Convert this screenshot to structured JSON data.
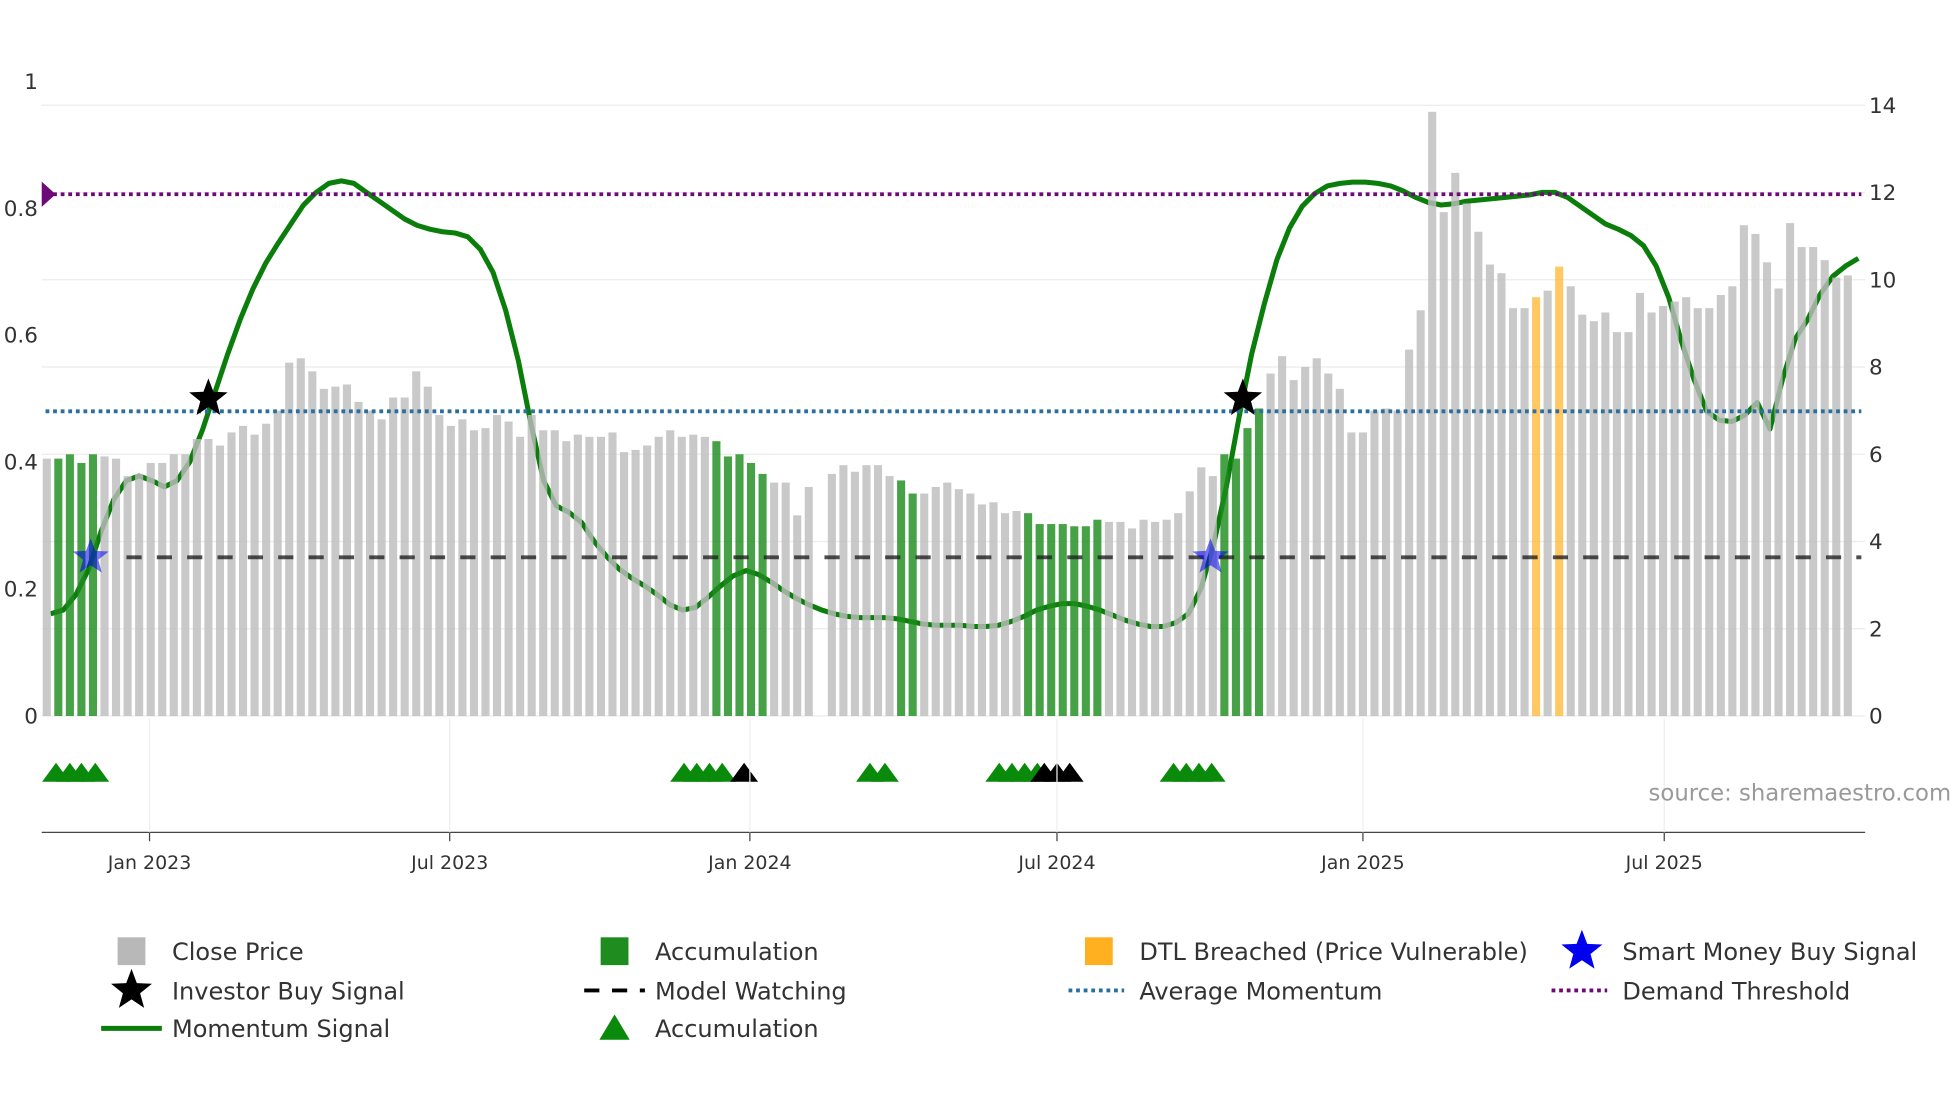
{
  "chart_data": {
    "type": "bar",
    "title": "",
    "source_text": "source: sharemaestro.com",
    "left_axis": {
      "ticks": [
        "0",
        "0.2",
        "0.4",
        "0.6",
        "0.8",
        "1"
      ],
      "range": [
        0,
        1
      ]
    },
    "right_axis": {
      "ticks": [
        "0",
        "2",
        "4",
        "6",
        "8",
        "10",
        "12",
        "14"
      ],
      "range": [
        0,
        14
      ]
    },
    "x_ticks": [
      {
        "label": "Jan 2023",
        "week": 8.9
      },
      {
        "label": "Jul 2023",
        "week": 34.9
      },
      {
        "label": "Jan 2024",
        "week": 60.9
      },
      {
        "label": "Jul 2024",
        "week": 87.5
      },
      {
        "label": "Jan 2025",
        "week": 114.0
      },
      {
        "label": "Jul 2025",
        "week": 140.1
      }
    ],
    "close_price": {
      "values": [
        5.9,
        5.9,
        6.0,
        5.8,
        6.0,
        5.95,
        5.9,
        5.5,
        5.55,
        5.8,
        5.8,
        6.0,
        6.0,
        6.35,
        6.35,
        6.2,
        6.5,
        6.65,
        6.45,
        6.7,
        7.0,
        8.1,
        8.2,
        7.9,
        7.5,
        7.55,
        7.6,
        7.2,
        7.0,
        6.8,
        7.3,
        7.3,
        7.9,
        7.55,
        6.9,
        6.65,
        6.8,
        6.55,
        6.6,
        6.9,
        6.75,
        6.4,
        6.9,
        6.55,
        6.55,
        6.3,
        6.45,
        6.4,
        6.4,
        6.5,
        6.05,
        6.1,
        6.2,
        6.4,
        6.55,
        6.4,
        6.45,
        6.4,
        6.3,
        5.95,
        6.0,
        5.8,
        5.55,
        5.35,
        5.35,
        4.6,
        5.25,
        null,
        5.55,
        5.75,
        5.6,
        5.75,
        5.75,
        5.5,
        5.4,
        5.1,
        5.1,
        5.25,
        5.35,
        5.2,
        5.1,
        4.85,
        4.9,
        4.65,
        4.7,
        4.65,
        4.4,
        4.4,
        4.4,
        4.35,
        4.35,
        4.5,
        4.45,
        4.45,
        4.3,
        4.5,
        4.45,
        4.5,
        4.65,
        5.15,
        5.7,
        5.5,
        6.0,
        5.9,
        6.6,
        7.05,
        7.85,
        8.25,
        7.7,
        8.0,
        8.2,
        7.85,
        7.5,
        6.5,
        6.5,
        7.0,
        7.05,
        7.0,
        8.4,
        9.3,
        13.85,
        11.55,
        12.45,
        11.75,
        11.1,
        10.35,
        10.15,
        9.35,
        9.35,
        9.6,
        9.75,
        10.3,
        9.85,
        9.2,
        9.05,
        9.25,
        8.8,
        8.8,
        9.7,
        9.25,
        9.4,
        9.5,
        9.6,
        9.35,
        9.35,
        9.65,
        9.85,
        11.25,
        11.05,
        10.4,
        9.8,
        11.3,
        10.75,
        10.75,
        10.45,
        10.05,
        10.1
      ],
      "types": "gaaaagggggggggggggggggggggggggggggggggggggggggggggggggggggaaaaagggggggggggaagggggggggaaaaaaaggggggggggaaaagggggggggggggggggggggggdgdgggggggggggggggggggggggggggggggggg"
    },
    "momentum_signal": {
      "start_week": 0.33,
      "step_weeks": 1.095,
      "values": [
        0.161,
        0.167,
        0.191,
        0.231,
        0.291,
        0.341,
        0.371,
        0.378,
        0.371,
        0.361,
        0.371,
        0.4,
        0.45,
        0.51,
        0.57,
        0.625,
        0.673,
        0.713,
        0.745,
        0.775,
        0.805,
        0.825,
        0.839,
        0.843,
        0.839,
        0.825,
        0.811,
        0.797,
        0.783,
        0.773,
        0.767,
        0.763,
        0.761,
        0.755,
        0.735,
        0.699,
        0.639,
        0.56,
        0.46,
        0.371,
        0.331,
        0.321,
        0.305,
        0.275,
        0.251,
        0.231,
        0.217,
        0.205,
        0.191,
        0.175,
        0.167,
        0.171,
        0.187,
        0.205,
        0.221,
        0.229,
        0.223,
        0.211,
        0.197,
        0.185,
        0.175,
        0.167,
        0.161,
        0.157,
        0.155,
        0.155,
        0.155,
        0.153,
        0.149,
        0.145,
        0.143,
        0.143,
        0.143,
        0.141,
        0.141,
        0.143,
        0.149,
        0.157,
        0.167,
        0.173,
        0.177,
        0.177,
        0.173,
        0.167,
        0.159,
        0.151,
        0.145,
        0.141,
        0.141,
        0.147,
        0.161,
        0.201,
        0.271,
        0.361,
        0.47,
        0.57,
        0.649,
        0.719,
        0.769,
        0.803,
        0.823,
        0.835,
        0.839,
        0.841,
        0.841,
        0.839,
        0.835,
        0.827,
        0.817,
        0.809,
        0.805,
        0.807,
        0.811,
        0.813,
        0.815,
        0.817,
        0.819,
        0.821,
        0.825,
        0.825,
        0.817,
        0.803,
        0.789,
        0.775,
        0.767,
        0.757,
        0.741,
        0.709,
        0.659,
        0.59,
        0.53,
        0.48,
        0.466,
        0.464,
        0.474,
        0.494,
        0.452,
        0.53,
        0.594,
        0.625,
        0.665,
        0.693,
        0.709,
        0.721
      ]
    },
    "demand_threshold": 0.822,
    "average_momentum": 0.48,
    "model_watching": 0.25,
    "investor_buy_signals": [
      {
        "week": 14.0,
        "value": 0.5
      },
      {
        "week": 103.6,
        "value": 0.5
      }
    ],
    "smart_money_buy_signals": [
      {
        "week": 3.8,
        "value": 0.25
      },
      {
        "week": 100.8,
        "value": 0.25
      }
    ],
    "accumulation_markers": [
      0.8,
      2.0,
      3.0,
      4.2,
      55.2,
      56.3,
      57.4,
      58.5,
      71.3,
      72.6,
      82.5,
      83.6,
      84.7,
      85.8,
      97.6,
      98.7,
      99.8,
      100.9
    ],
    "model_markers": [
      60.4,
      86.4,
      87.5,
      88.6
    ],
    "colors": {
      "gray": "#bdbdbd",
      "accumulation": "#1e8c1e",
      "dtl": "#ffb020",
      "momentum": "#0a7d0a",
      "avg": "#2a6f9e",
      "demand": "#6e0a78",
      "smart": "#0000ee"
    },
    "legend": [
      {
        "label": "Close Price",
        "icon": "gray-square"
      },
      {
        "label": "Accumulation",
        "icon": "green-square"
      },
      {
        "label": "DTL Breached (Price Vulnerable)",
        "icon": "orange-square"
      },
      {
        "label": "Smart Money Buy Signal",
        "icon": "blue-star"
      },
      {
        "label": "Investor Buy Signal",
        "icon": "black-star"
      },
      {
        "label": "Model Watching",
        "icon": "black-dash"
      },
      {
        "label": "Average Momentum",
        "icon": "blue-dotted"
      },
      {
        "label": "Demand Threshold",
        "icon": "purple-dotted"
      },
      {
        "label": "Momentum Signal",
        "icon": "green-line"
      },
      {
        "label": "Accumulation",
        "icon": "green-triangle"
      }
    ]
  }
}
